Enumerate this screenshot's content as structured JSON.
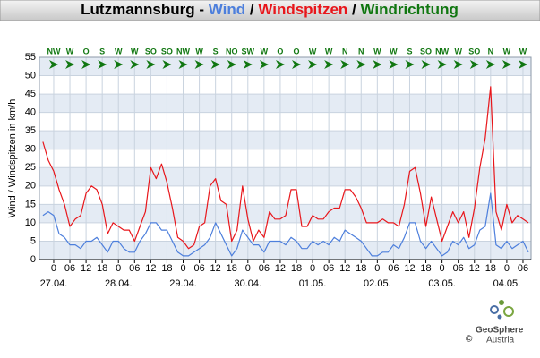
{
  "chart_data": {
    "type": "line",
    "title_prefix": "Lutzmannsburg - ",
    "title_sep": " / ",
    "direction_title": "Windrichtung",
    "direction_color": "#117711",
    "ylabel": "Wind / Windspitzen in km/h",
    "x": [
      -4,
      -2,
      0,
      2,
      4,
      6,
      8,
      10,
      12,
      14,
      16,
      18,
      20,
      22,
      24,
      26,
      28,
      30,
      32,
      34,
      36,
      38,
      40,
      42,
      44,
      46,
      48,
      50,
      52,
      54,
      56,
      58,
      60,
      62,
      64,
      66,
      68,
      70,
      72,
      74,
      76,
      78,
      80,
      82,
      84,
      86,
      88,
      90,
      92,
      94,
      96,
      98,
      100,
      102,
      104,
      106,
      108,
      110,
      112,
      114,
      116,
      118,
      120,
      122,
      124,
      126,
      128,
      130,
      132,
      134,
      136,
      138,
      140,
      142,
      144,
      146,
      148,
      150,
      152,
      154,
      156,
      158,
      160,
      162,
      164,
      166,
      168,
      170,
      172,
      174,
      176
    ],
    "series": [
      {
        "name": "Wind",
        "color": "#4d7fdc",
        "values": [
          12,
          13,
          12,
          7,
          6,
          4,
          4,
          3,
          5,
          5,
          6,
          4,
          2,
          5,
          5,
          3,
          2,
          2,
          5,
          7,
          10,
          10,
          8,
          8,
          5,
          2,
          1,
          1,
          2,
          3,
          4,
          6,
          10,
          7,
          4,
          1,
          3,
          8,
          6,
          4,
          4,
          2,
          5,
          5,
          5,
          4,
          6,
          5,
          3,
          3,
          5,
          4,
          5,
          4,
          6,
          5,
          8,
          7,
          6,
          5,
          3,
          1,
          1,
          2,
          2,
          4,
          3,
          6,
          10,
          10,
          5,
          3,
          5,
          3,
          1,
          2,
          5,
          4,
          6,
          3,
          4,
          8,
          9,
          18,
          4,
          3,
          5,
          3,
          4,
          5,
          2
        ]
      },
      {
        "name": "Windspitzen",
        "color": "#e8161b",
        "values": [
          32,
          27,
          24,
          19,
          15,
          9,
          11,
          12,
          18,
          20,
          19,
          15,
          7,
          10,
          9,
          8,
          8,
          5,
          9,
          13,
          25,
          22,
          26,
          21,
          14,
          6,
          5,
          3,
          4,
          9,
          10,
          20,
          22,
          16,
          15,
          5,
          8,
          20,
          11,
          5,
          8,
          6,
          13,
          11,
          11,
          12,
          19,
          19,
          9,
          9,
          12,
          11,
          11,
          13,
          14,
          14,
          19,
          19,
          17,
          14,
          10,
          10,
          10,
          11,
          10,
          10,
          9,
          15,
          24,
          25,
          18,
          9,
          17,
          11,
          5,
          9,
          13,
          10,
          13,
          6,
          14,
          25,
          33,
          47,
          13,
          8,
          15,
          10,
          12,
          11,
          10
        ]
      }
    ],
    "xlim": [
      -5.3,
      177
    ],
    "ylim": [
      0,
      55
    ],
    "yticks": [
      0,
      5,
      10,
      15,
      20,
      25,
      30,
      35,
      40,
      45,
      50,
      55
    ],
    "xticks": [
      0,
      {
        "value": 6,
        "label": "06"
      },
      12,
      18,
      {
        "value": 24,
        "label": "0"
      },
      {
        "value": 30,
        "label": "06"
      },
      {
        "value": 36,
        "label": "12"
      },
      {
        "value": 42,
        "label": "18"
      },
      {
        "value": 48,
        "label": "0"
      },
      {
        "value": 54,
        "label": "06"
      },
      {
        "value": 60,
        "label": "12"
      },
      {
        "value": 66,
        "label": "18"
      },
      {
        "value": 72,
        "label": "0"
      },
      {
        "value": 78,
        "label": "06"
      },
      {
        "value": 84,
        "label": "12"
      },
      {
        "value": 90,
        "label": "18"
      },
      {
        "value": 96,
        "label": "0"
      },
      {
        "value": 102,
        "label": "06"
      },
      {
        "value": 108,
        "label": "12"
      },
      {
        "value": 114,
        "label": "18"
      },
      {
        "value": 120,
        "label": "0"
      },
      {
        "value": 126,
        "label": "06"
      },
      {
        "value": 132,
        "label": "12"
      },
      {
        "value": 138,
        "label": "18"
      },
      {
        "value": 144,
        "label": "0"
      },
      {
        "value": 150,
        "label": "06"
      },
      {
        "value": 156,
        "label": "12"
      },
      {
        "value": 162,
        "label": "18"
      },
      {
        "value": 168,
        "label": "0"
      },
      {
        "value": 174,
        "label": "06"
      }
    ],
    "date_labels": [
      {
        "value": 0,
        "label": "27.04."
      },
      {
        "value": 24,
        "label": "28.04."
      },
      {
        "value": 48,
        "label": "29.04."
      },
      {
        "value": 72,
        "label": "30.04."
      },
      {
        "value": 96,
        "label": "01.05."
      },
      {
        "value": 120,
        "label": "02.05."
      },
      {
        "value": 144,
        "label": "03.05."
      },
      {
        "value": 168,
        "label": "04.05."
      }
    ],
    "directions": {
      "x": [
        0,
        6,
        12,
        18,
        24,
        30,
        36,
        42,
        48,
        54,
        60,
        66,
        72,
        78,
        84,
        90,
        96,
        102,
        108,
        114,
        120,
        126,
        132,
        138,
        144,
        150,
        156,
        162,
        168,
        174
      ],
      "labels": [
        "NW",
        "W",
        "O",
        "S",
        "W",
        "W",
        "SO",
        "SO",
        "NW",
        "W",
        "S",
        "NO",
        "SW",
        "W",
        "O",
        "O",
        "W",
        "W",
        "N",
        "N",
        "W",
        "W",
        "S",
        "SO",
        "NW",
        "W",
        "SO",
        "N",
        "W",
        "W"
      ]
    },
    "grid": true,
    "band_colors": [
      "#e4ebf4",
      "#ffffff"
    ],
    "logo": {
      "name": "GeoSphere",
      "sub": "Austria",
      "copyright": "©"
    }
  }
}
